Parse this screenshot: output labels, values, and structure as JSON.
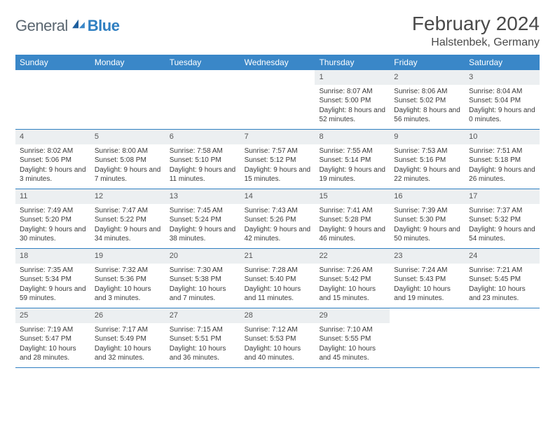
{
  "brand": {
    "general": "General",
    "blue": "Blue"
  },
  "title": "February 2024",
  "location": "Halstenbek, Germany",
  "colors": {
    "header_bg": "#3a87c8",
    "border": "#2f7fc1",
    "daynum_bg": "#eceff1",
    "text": "#3a3a3a"
  },
  "weekdays": [
    "Sunday",
    "Monday",
    "Tuesday",
    "Wednesday",
    "Thursday",
    "Friday",
    "Saturday"
  ],
  "weeks": [
    [
      null,
      null,
      null,
      null,
      {
        "n": "1",
        "sr": "8:07 AM",
        "ss": "5:00 PM",
        "dl": "8 hours and 52 minutes."
      },
      {
        "n": "2",
        "sr": "8:06 AM",
        "ss": "5:02 PM",
        "dl": "8 hours and 56 minutes."
      },
      {
        "n": "3",
        "sr": "8:04 AM",
        "ss": "5:04 PM",
        "dl": "9 hours and 0 minutes."
      }
    ],
    [
      {
        "n": "4",
        "sr": "8:02 AM",
        "ss": "5:06 PM",
        "dl": "9 hours and 3 minutes."
      },
      {
        "n": "5",
        "sr": "8:00 AM",
        "ss": "5:08 PM",
        "dl": "9 hours and 7 minutes."
      },
      {
        "n": "6",
        "sr": "7:58 AM",
        "ss": "5:10 PM",
        "dl": "9 hours and 11 minutes."
      },
      {
        "n": "7",
        "sr": "7:57 AM",
        "ss": "5:12 PM",
        "dl": "9 hours and 15 minutes."
      },
      {
        "n": "8",
        "sr": "7:55 AM",
        "ss": "5:14 PM",
        "dl": "9 hours and 19 minutes."
      },
      {
        "n": "9",
        "sr": "7:53 AM",
        "ss": "5:16 PM",
        "dl": "9 hours and 22 minutes."
      },
      {
        "n": "10",
        "sr": "7:51 AM",
        "ss": "5:18 PM",
        "dl": "9 hours and 26 minutes."
      }
    ],
    [
      {
        "n": "11",
        "sr": "7:49 AM",
        "ss": "5:20 PM",
        "dl": "9 hours and 30 minutes."
      },
      {
        "n": "12",
        "sr": "7:47 AM",
        "ss": "5:22 PM",
        "dl": "9 hours and 34 minutes."
      },
      {
        "n": "13",
        "sr": "7:45 AM",
        "ss": "5:24 PM",
        "dl": "9 hours and 38 minutes."
      },
      {
        "n": "14",
        "sr": "7:43 AM",
        "ss": "5:26 PM",
        "dl": "9 hours and 42 minutes."
      },
      {
        "n": "15",
        "sr": "7:41 AM",
        "ss": "5:28 PM",
        "dl": "9 hours and 46 minutes."
      },
      {
        "n": "16",
        "sr": "7:39 AM",
        "ss": "5:30 PM",
        "dl": "9 hours and 50 minutes."
      },
      {
        "n": "17",
        "sr": "7:37 AM",
        "ss": "5:32 PM",
        "dl": "9 hours and 54 minutes."
      }
    ],
    [
      {
        "n": "18",
        "sr": "7:35 AM",
        "ss": "5:34 PM",
        "dl": "9 hours and 59 minutes."
      },
      {
        "n": "19",
        "sr": "7:32 AM",
        "ss": "5:36 PM",
        "dl": "10 hours and 3 minutes."
      },
      {
        "n": "20",
        "sr": "7:30 AM",
        "ss": "5:38 PM",
        "dl": "10 hours and 7 minutes."
      },
      {
        "n": "21",
        "sr": "7:28 AM",
        "ss": "5:40 PM",
        "dl": "10 hours and 11 minutes."
      },
      {
        "n": "22",
        "sr": "7:26 AM",
        "ss": "5:42 PM",
        "dl": "10 hours and 15 minutes."
      },
      {
        "n": "23",
        "sr": "7:24 AM",
        "ss": "5:43 PM",
        "dl": "10 hours and 19 minutes."
      },
      {
        "n": "24",
        "sr": "7:21 AM",
        "ss": "5:45 PM",
        "dl": "10 hours and 23 minutes."
      }
    ],
    [
      {
        "n": "25",
        "sr": "7:19 AM",
        "ss": "5:47 PM",
        "dl": "10 hours and 28 minutes."
      },
      {
        "n": "26",
        "sr": "7:17 AM",
        "ss": "5:49 PM",
        "dl": "10 hours and 32 minutes."
      },
      {
        "n": "27",
        "sr": "7:15 AM",
        "ss": "5:51 PM",
        "dl": "10 hours and 36 minutes."
      },
      {
        "n": "28",
        "sr": "7:12 AM",
        "ss": "5:53 PM",
        "dl": "10 hours and 40 minutes."
      },
      {
        "n": "29",
        "sr": "7:10 AM",
        "ss": "5:55 PM",
        "dl": "10 hours and 45 minutes."
      },
      null,
      null
    ]
  ]
}
